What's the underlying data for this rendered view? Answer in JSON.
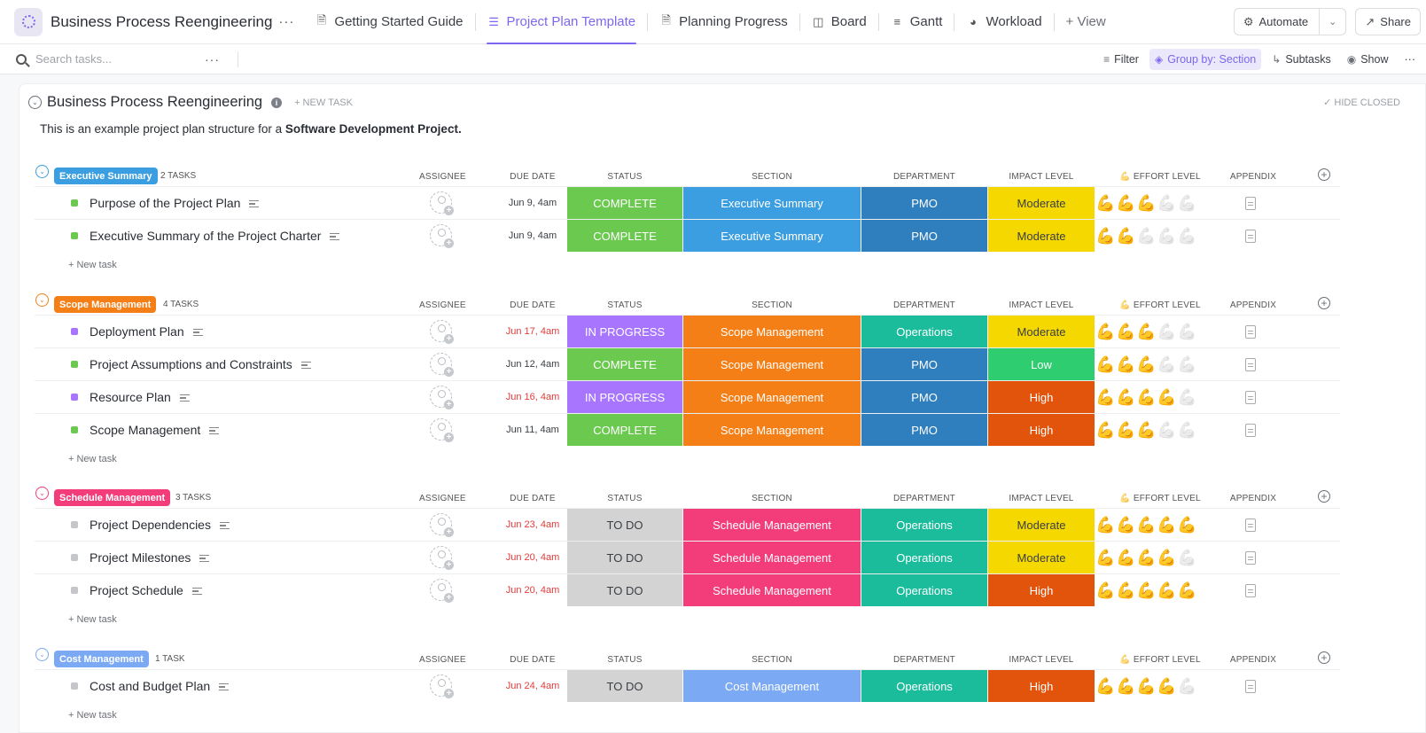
{
  "topbar": {
    "workspace_title": "Business Process Reengineering",
    "more": "···",
    "tabs": [
      {
        "label": "Getting Started Guide",
        "icon": "doc-icon"
      },
      {
        "label": "Project Plan Template",
        "icon": "list-icon",
        "active": true
      },
      {
        "label": "Planning Progress",
        "icon": "doc-icon"
      },
      {
        "label": "Board",
        "icon": "board-icon"
      },
      {
        "label": "Gantt",
        "icon": "gantt-icon"
      },
      {
        "label": "Workload",
        "icon": "workload-icon"
      }
    ],
    "add_view": "+ View",
    "automate": "Automate",
    "share": "Share"
  },
  "toolbar": {
    "search_placeholder": "Search tasks...",
    "search_more": "···",
    "filter": "Filter",
    "group_by": "Group by: Section",
    "subtasks": "Subtasks",
    "show": "Show",
    "more": "···"
  },
  "list": {
    "title": "Business Process Reengineering",
    "new_task": "+ NEW TASK",
    "hide_closed": "HIDE CLOSED",
    "description_prefix": "This is an example project plan structure for a ",
    "description_bold": "Software Development Project."
  },
  "columns": {
    "assignee": "ASSIGNEE",
    "due_date": "DUE DATE",
    "status": "STATUS",
    "section": "SECTION",
    "department": "DEPARTMENT",
    "impact_level": "IMPACT LEVEL",
    "effort_level": "EFFORT LEVEL",
    "appendix": "APPENDIX"
  },
  "colors": {
    "complete": "#6bc950",
    "in_progress": "#a875ff",
    "todo": "#d3d3d3",
    "pmo": "#2f7fbf",
    "operations": "#1bbc9c",
    "moderate": "#f5d800",
    "low": "#2ecd6f",
    "high": "#e2530b",
    "overdue_text": "#e23b3b",
    "accent": "#7b68ee"
  },
  "new_task_label": "+ New task",
  "groups": [
    {
      "name": "Executive Summary",
      "color": "#3a9ee0",
      "count": "2 TASKS",
      "tasks": [
        {
          "name": "Purpose of the Project Plan",
          "due": "Jun 9, 4am",
          "overdue": false,
          "status": "COMPLETE",
          "section": "Executive Summary",
          "department": "PMO",
          "impact": "Moderate",
          "effort": 3
        },
        {
          "name": "Executive Summary of the Project Charter",
          "due": "Jun 9, 4am",
          "overdue": false,
          "status": "COMPLETE",
          "section": "Executive Summary",
          "department": "PMO",
          "impact": "Moderate",
          "effort": 2
        }
      ]
    },
    {
      "name": "Scope Management",
      "color": "#f57f17",
      "count": "4 TASKS",
      "tasks": [
        {
          "name": "Deployment Plan",
          "due": "Jun 17, 4am",
          "overdue": true,
          "status": "IN PROGRESS",
          "section": "Scope Management",
          "department": "Operations",
          "impact": "Moderate",
          "effort": 3
        },
        {
          "name": "Project Assumptions and Constraints",
          "due": "Jun 12, 4am",
          "overdue": false,
          "status": "COMPLETE",
          "section": "Scope Management",
          "department": "PMO",
          "impact": "Low",
          "effort": 3
        },
        {
          "name": "Resource Plan",
          "due": "Jun 16, 4am",
          "overdue": true,
          "status": "IN PROGRESS",
          "section": "Scope Management",
          "department": "PMO",
          "impact": "High",
          "effort": 4
        },
        {
          "name": "Scope Management",
          "due": "Jun 11, 4am",
          "overdue": false,
          "status": "COMPLETE",
          "section": "Scope Management",
          "department": "PMO",
          "impact": "High",
          "effort": 3
        }
      ]
    },
    {
      "name": "Schedule Management",
      "color": "#f23d7a",
      "count": "3 TASKS",
      "tasks": [
        {
          "name": "Project Dependencies",
          "due": "Jun 23, 4am",
          "overdue": true,
          "status": "TO DO",
          "section": "Schedule Management",
          "department": "Operations",
          "impact": "Moderate",
          "effort": 5
        },
        {
          "name": "Project Milestones",
          "due": "Jun 20, 4am",
          "overdue": true,
          "status": "TO DO",
          "section": "Schedule Management",
          "department": "Operations",
          "impact": "Moderate",
          "effort": 4
        },
        {
          "name": "Project Schedule",
          "due": "Jun 20, 4am",
          "overdue": true,
          "status": "TO DO",
          "section": "Schedule Management",
          "department": "Operations",
          "impact": "High",
          "effort": 5
        }
      ]
    },
    {
      "name": "Cost Management",
      "color": "#7ba9f4",
      "count": "1 TASK",
      "tasks": [
        {
          "name": "Cost and Budget Plan",
          "due": "Jun 24, 4am",
          "overdue": true,
          "status": "TO DO",
          "section": "Cost Management",
          "department": "Operations",
          "impact": "High",
          "effort": 4
        }
      ]
    }
  ]
}
